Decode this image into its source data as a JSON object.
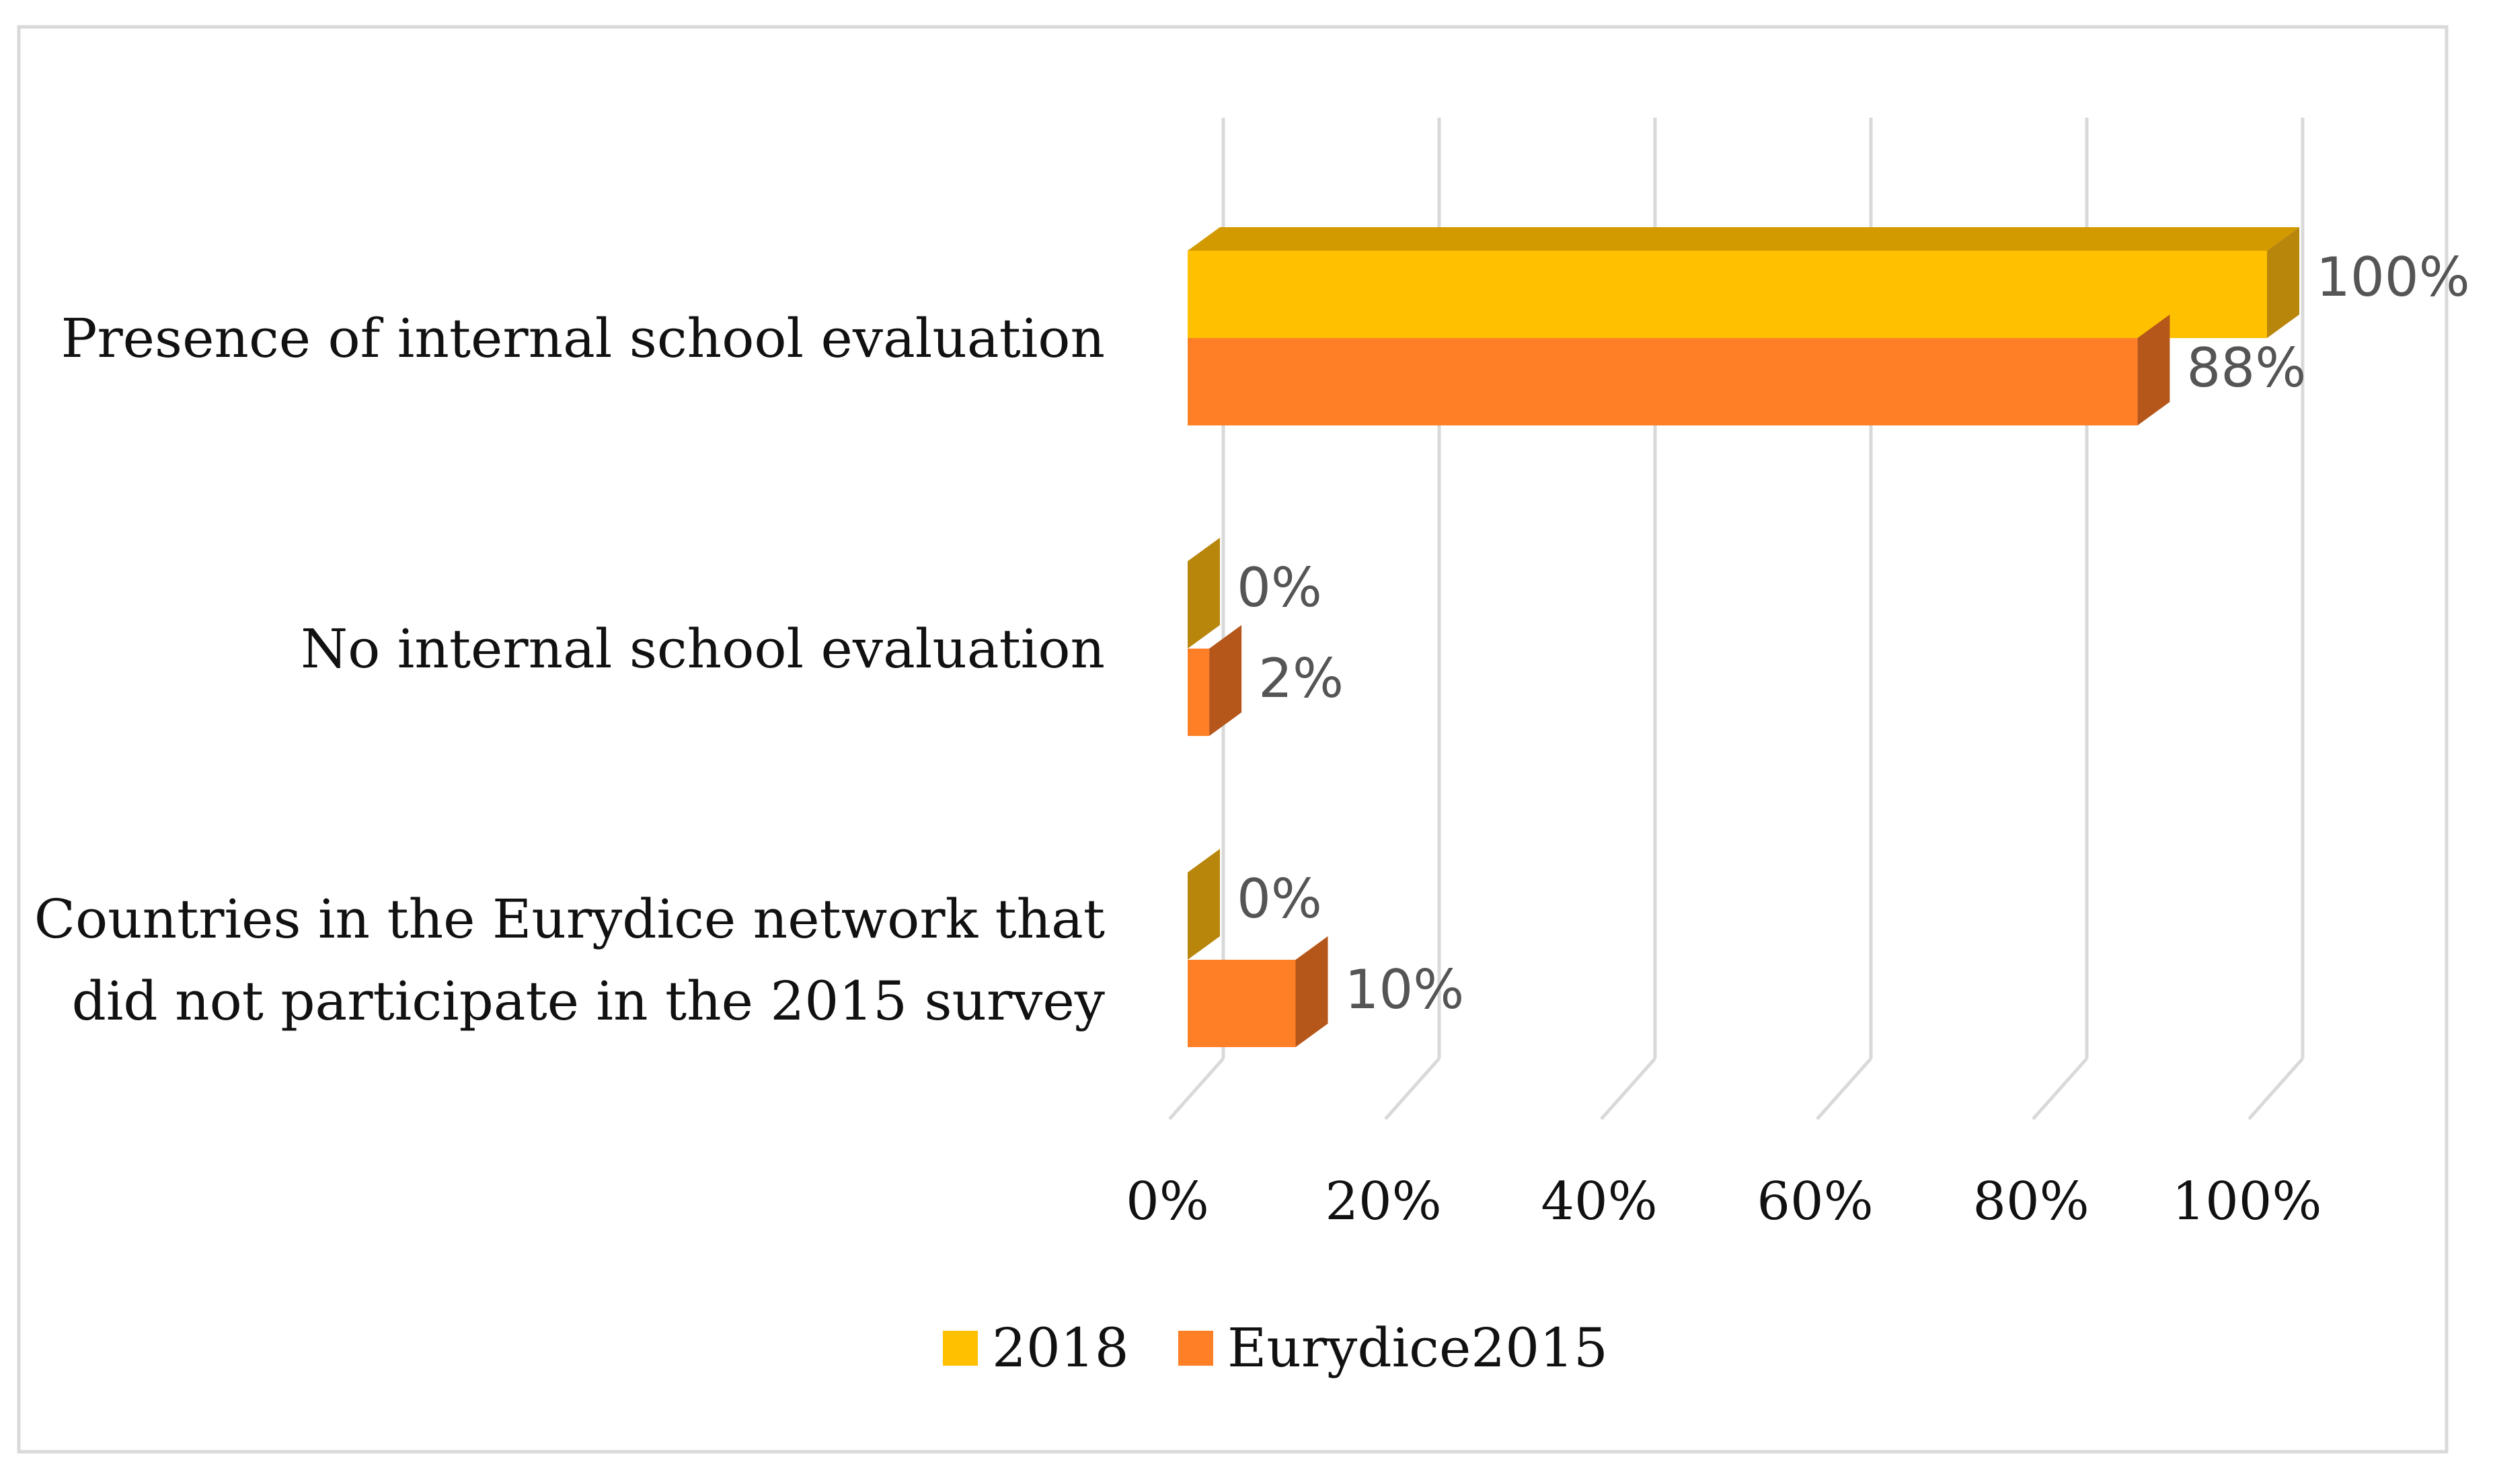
{
  "chart_data": {
    "type": "bar",
    "orientation": "horizontal",
    "style": "3d",
    "title": "",
    "xlabel": "",
    "ylabel": "",
    "xlim": [
      0,
      100
    ],
    "value_unit": "%",
    "categories": [
      [
        "Presence of internal school evaluation"
      ],
      [
        "No internal school evaluation"
      ],
      [
        "Countries in the Eurydice network that",
        "did not participate in the 2015 survey"
      ]
    ],
    "x_ticks": [
      "0%",
      "20%",
      "40%",
      "60%",
      "80%",
      "100%"
    ],
    "x_tick_values": [
      0,
      20,
      40,
      60,
      80,
      100
    ],
    "series": [
      {
        "name": "2018",
        "color": "#FFC000",
        "side_color": "#B8860B",
        "top_color": "#D39A00",
        "values": [
          100,
          0,
          0
        ],
        "labels": [
          "100%",
          "0%",
          "0%"
        ]
      },
      {
        "name": "Eurydice2015",
        "color": "#FF7F27",
        "side_color": "#B5561A",
        "top_color": "#E0691B",
        "values": [
          88,
          2,
          10
        ],
        "labels": [
          "88%",
          "2%",
          "10%"
        ]
      }
    ],
    "grid": true,
    "legend_position": "bottom"
  }
}
